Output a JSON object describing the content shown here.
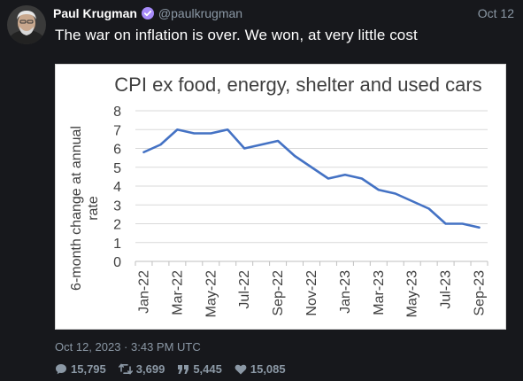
{
  "tweet": {
    "author_name": "Paul Krugman",
    "handle": "@paulkrugman",
    "date": "Oct 12",
    "text": "The war on inflation is over. We won, at very little cost",
    "timestamp": "Oct 12, 2023 · 3:43 PM UTC"
  },
  "stats": {
    "replies": "15,795",
    "retweets": "3,699",
    "quotes": "5,445",
    "likes": "15,085"
  },
  "icons": {
    "avatar": "avatar",
    "verified": "verified-icon",
    "reply": "reply-icon",
    "retweet": "retweet-icon",
    "quote": "quote-icon",
    "like": "heart-icon"
  },
  "colors": {
    "background": "#17181c",
    "verified": "#a78bfa",
    "line": "#4472c4",
    "muted": "#8b98a5"
  },
  "chart_data": {
    "type": "line",
    "title": "CPI ex food, energy, shelter and used cars",
    "xlabel": "",
    "ylabel": "6-month change at annual rate",
    "ylim": [
      0,
      8
    ],
    "yticks": [
      0,
      1,
      2,
      3,
      4,
      5,
      6,
      7,
      8
    ],
    "grid": true,
    "x": [
      "Jan-22",
      "Feb-22",
      "Mar-22",
      "Apr-22",
      "May-22",
      "Jun-22",
      "Jul-22",
      "Aug-22",
      "Sep-22",
      "Oct-22",
      "Nov-22",
      "Dec-22",
      "Jan-23",
      "Feb-23",
      "Mar-23",
      "Apr-23",
      "May-23",
      "Jun-23",
      "Jul-23",
      "Aug-23",
      "Sep-23"
    ],
    "xtick_labels": [
      "Jan-22",
      "Mar-22",
      "May-22",
      "Jul-22",
      "Sep-22",
      "Nov-22",
      "Jan-23",
      "Mar-23",
      "May-23",
      "Jul-23",
      "Sep-23"
    ],
    "series": [
      {
        "values": [
          5.8,
          6.2,
          7.0,
          6.8,
          6.8,
          7.0,
          6.0,
          6.2,
          6.4,
          5.6,
          5.0,
          4.4,
          4.6,
          4.4,
          3.8,
          3.6,
          3.2,
          2.8,
          2.0,
          2.0,
          1.8
        ]
      }
    ]
  }
}
